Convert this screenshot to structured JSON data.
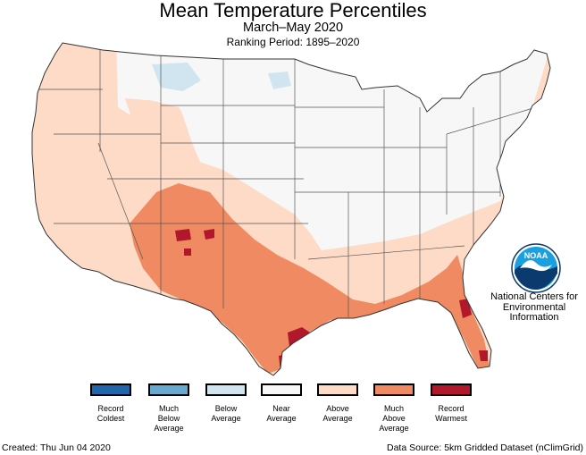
{
  "header": {
    "title": "Mean Temperature Percentiles",
    "subtitle": "March–May 2020",
    "ranking_period": "Ranking Period: 1895–2020"
  },
  "legend": [
    {
      "label": "Record\nColdest",
      "color": "#2166ac"
    },
    {
      "label": "Much\nBelow\nAverage",
      "color": "#67a9cf"
    },
    {
      "label": "Below\nAverage",
      "color": "#d1e5f0"
    },
    {
      "label": "Near\nAverage",
      "color": "#f7f7f7"
    },
    {
      "label": "Above\nAverage",
      "color": "#fddbc7"
    },
    {
      "label": "Much\nAbove\nAverage",
      "color": "#ef8a62"
    },
    {
      "label": "Record\nWarmest",
      "color": "#b2182b"
    }
  ],
  "logo": {
    "icon": "noaa-logo-icon",
    "text": "NOAA",
    "org": "National Centers for\nEnvironmental\nInformation"
  },
  "footer": {
    "created": "Created: Thu Jun 04 2020",
    "source": "Data Source: 5km Gridded Dataset (nClimGrid)"
  },
  "colors": {
    "state_border": "#555555",
    "map_outline": "#333333"
  }
}
